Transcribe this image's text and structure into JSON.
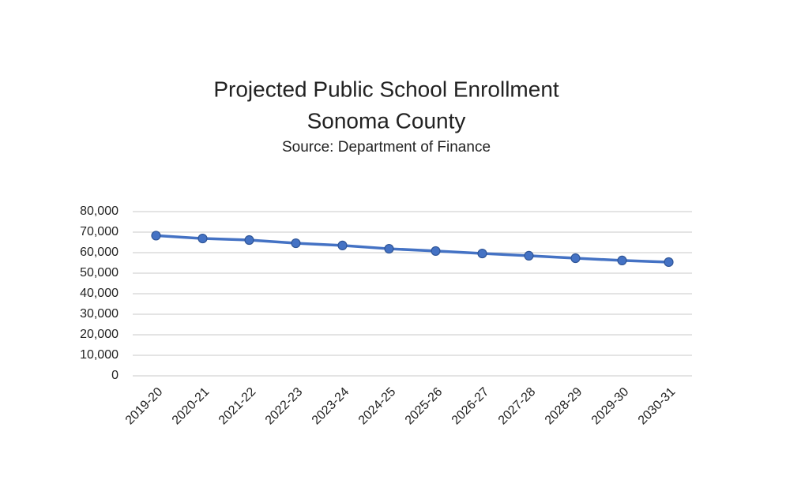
{
  "chart_data": {
    "type": "line",
    "title": [
      "Projected Public School Enrollment",
      "Sonoma County"
    ],
    "subtitle": "Source:  Department of Finance",
    "categories": [
      "2019-20",
      "2020-21",
      "2021-22",
      "2022-23",
      "2023-24",
      "2024-25",
      "2025-26",
      "2026-27",
      "2027-28",
      "2028-29",
      "2029-30",
      "2030-31"
    ],
    "values": [
      68300,
      66900,
      66150,
      64600,
      63500,
      61900,
      60800,
      59600,
      58500,
      57300,
      56200,
      55400
    ],
    "color": "#4472c4",
    "ylim": [
      0,
      80000
    ],
    "yticks": [
      0,
      {
        "value": 10000,
        "label": "10,000"
      },
      {
        "value": 20000,
        "label": "20,000"
      },
      {
        "value": 30000,
        "label": "30,000"
      },
      {
        "value": 40000,
        "label": "40,000"
      },
      {
        "value": 50000,
        "label": "50,000"
      },
      {
        "value": 60000,
        "label": "60,000"
      },
      {
        "value": 70000,
        "label": "70,000"
      },
      {
        "value": 80000,
        "label": "80,000"
      }
    ],
    "grid": true
  }
}
